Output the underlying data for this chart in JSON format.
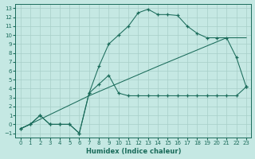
{
  "xlabel": "Humidex (Indice chaleur)",
  "bg_color": "#c5e8e3",
  "line_color": "#1a6b5a",
  "grid_color": "#a8cfc8",
  "xlim": [
    -0.5,
    23.5
  ],
  "ylim": [
    -1.5,
    13.5
  ],
  "xticks": [
    0,
    1,
    2,
    3,
    4,
    5,
    6,
    7,
    8,
    9,
    10,
    11,
    12,
    13,
    14,
    15,
    16,
    17,
    18,
    19,
    20,
    21,
    22,
    23
  ],
  "yticks": [
    -1,
    0,
    1,
    2,
    3,
    4,
    5,
    6,
    7,
    8,
    9,
    10,
    11,
    12,
    13
  ],
  "curve_upper_x": [
    0,
    1,
    2,
    3,
    4,
    5,
    6,
    7,
    8,
    9,
    10,
    11,
    12,
    13,
    14,
    15,
    16,
    17,
    18,
    19,
    20,
    21,
    22,
    23
  ],
  "curve_upper_y": [
    -0.5,
    0.0,
    1.0,
    0.0,
    0.0,
    0.0,
    -1.0,
    3.5,
    6.5,
    9.0,
    10.0,
    11.0,
    12.5,
    12.9,
    12.3,
    12.3,
    12.2,
    11.0,
    10.2,
    9.7,
    9.7,
    9.7,
    7.5,
    4.2
  ],
  "curve_mid_x": [
    0,
    7,
    14,
    21,
    23
  ],
  "curve_mid_y": [
    -0.5,
    3.2,
    6.5,
    9.7,
    9.7
  ],
  "curve_low_x": [
    0,
    1,
    2,
    3,
    4,
    5,
    6,
    7,
    8,
    9,
    10,
    11,
    12,
    13,
    14,
    15,
    16,
    17,
    18,
    19,
    20,
    21,
    22,
    23
  ],
  "curve_low_y": [
    -0.5,
    0.0,
    1.0,
    0.0,
    0.0,
    0.0,
    -1.0,
    3.5,
    4.5,
    5.5,
    3.5,
    3.2,
    3.2,
    3.2,
    3.2,
    3.2,
    3.2,
    3.2,
    3.2,
    3.2,
    3.2,
    3.2,
    3.2,
    4.2
  ]
}
